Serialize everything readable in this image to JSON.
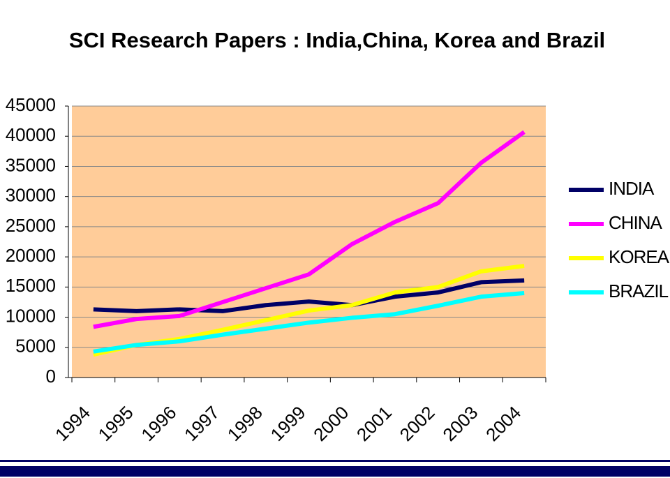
{
  "chart_data": {
    "type": "line",
    "title": "SCI Research Papers : India,China, Korea and Brazil",
    "categories": [
      "1994",
      "1995",
      "1996",
      "1997",
      "1998",
      "1999",
      "2000",
      "2001",
      "2002",
      "2003",
      "2004"
    ],
    "series": [
      {
        "name": "INDIA",
        "color": "#000066",
        "values": [
          11300,
          11000,
          11300,
          11000,
          12000,
          12600,
          12000,
          13400,
          14100,
          15800,
          16100
        ]
      },
      {
        "name": "CHINA",
        "color": "#ff00ff",
        "values": [
          8400,
          9700,
          10200,
          12500,
          14800,
          17100,
          22100,
          25800,
          28900,
          35600,
          40700
        ]
      },
      {
        "name": "KOREA",
        "color": "#ffff00",
        "values": [
          3800,
          5400,
          6400,
          7900,
          9500,
          11100,
          12000,
          14100,
          15000,
          17600,
          18500
        ]
      },
      {
        "name": "BRAZIL",
        "color": "#00ffff",
        "values": [
          4300,
          5400,
          6000,
          7100,
          8100,
          9100,
          9900,
          10500,
          11900,
          13400,
          14000
        ]
      }
    ],
    "ylim": [
      0,
      45000
    ],
    "yticks": [
      0,
      5000,
      10000,
      15000,
      20000,
      25000,
      30000,
      35000,
      40000,
      45000
    ],
    "grid": true,
    "plot_background": "#ffcc99",
    "legend": "right"
  }
}
